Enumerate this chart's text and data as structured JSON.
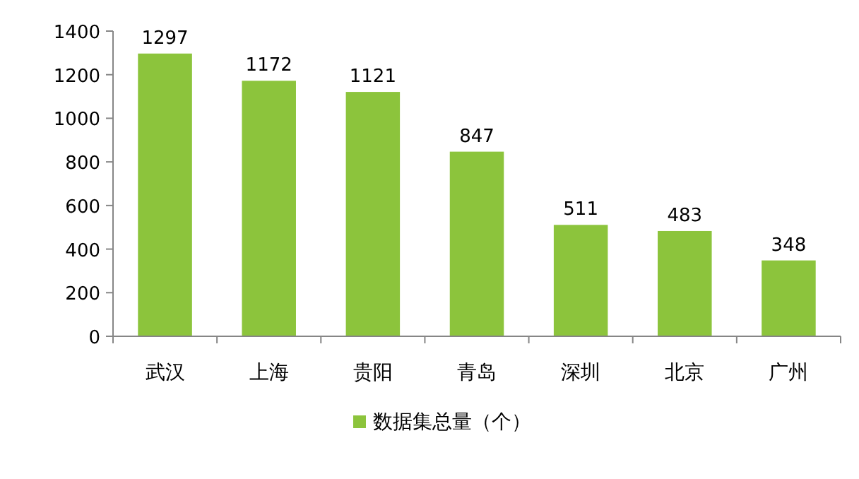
{
  "chart_data": {
    "type": "bar",
    "categories": [
      "武汉",
      "上海",
      "贵阳",
      "青岛",
      "深圳",
      "北京",
      "广州"
    ],
    "series": [
      {
        "name": "数据集总量（个）",
        "color": "#8cc43c",
        "values": [
          1297,
          1172,
          1121,
          847,
          511,
          483,
          348
        ]
      }
    ],
    "ylim": [
      0,
      1400
    ],
    "yticks": [
      0,
      200,
      400,
      600,
      800,
      1000,
      1200,
      1400
    ],
    "data_labels": true,
    "grid": false,
    "legend": "bottom"
  }
}
